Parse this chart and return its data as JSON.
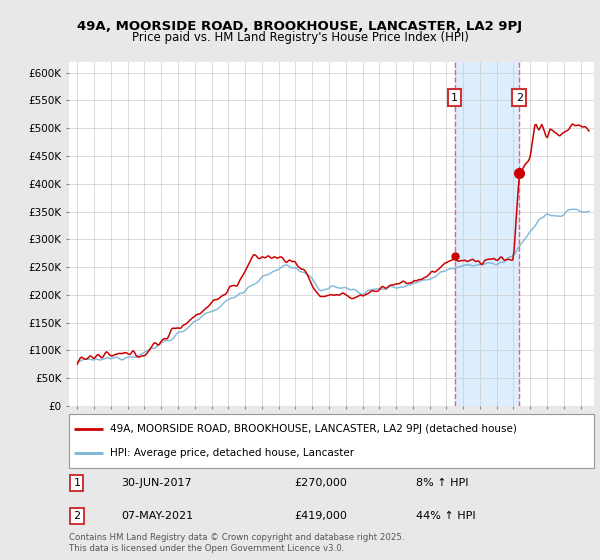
{
  "title_line1": "49A, MOORSIDE ROAD, BROOKHOUSE, LANCASTER, LA2 9PJ",
  "title_line2": "Price paid vs. HM Land Registry's House Price Index (HPI)",
  "ylabel_ticks": [
    "£0",
    "£50K",
    "£100K",
    "£150K",
    "£200K",
    "£250K",
    "£300K",
    "£350K",
    "£400K",
    "£450K",
    "£500K",
    "£550K",
    "£600K"
  ],
  "ytick_values": [
    0,
    50000,
    100000,
    150000,
    200000,
    250000,
    300000,
    350000,
    400000,
    450000,
    500000,
    550000,
    600000
  ],
  "ylim": [
    0,
    620000
  ],
  "xlim_start": 1994.5,
  "xlim_end": 2025.8,
  "hpi_color": "#7ab4d8",
  "price_color": "#cc0000",
  "marker1_date": 2017.49,
  "marker1_price": 270000,
  "marker2_date": 2021.35,
  "marker2_price": 419000,
  "vline_color": "#dd6677",
  "shade_color": "#ddeeff",
  "legend_label1": "49A, MOORSIDE ROAD, BROOKHOUSE, LANCASTER, LA2 9PJ (detached house)",
  "legend_label2": "HPI: Average price, detached house, Lancaster",
  "footer": "Contains HM Land Registry data © Crown copyright and database right 2025.\nThis data is licensed under the Open Government Licence v3.0.",
  "background_color": "#e8e8e8",
  "plot_background": "#ffffff",
  "grid_color": "#cccccc"
}
